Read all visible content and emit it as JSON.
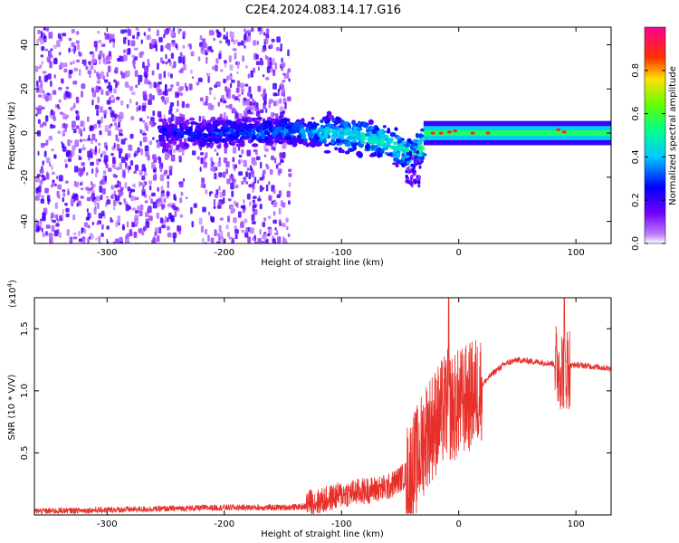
{
  "title": "C2E4.2024.083.14.17.G16",
  "chart_data": [
    {
      "type": "heatmap",
      "xlabel": "Height of straight line (km)",
      "ylabel": "Frequency (Hz)",
      "xlim": [
        -362,
        130
      ],
      "ylim": [
        -50,
        48
      ],
      "xticks": [
        -300,
        -200,
        -100,
        0,
        100
      ],
      "xtick_labels": [
        "-300",
        "-200",
        "-100",
        "0",
        "100"
      ],
      "yticks": [
        -40,
        -20,
        0,
        20,
        40
      ],
      "ytick_labels": [
        "-40",
        "-20",
        "0",
        "20",
        "40"
      ],
      "colorbar": {
        "label": "Normalized spectral amplitude",
        "range": [
          0,
          1
        ],
        "ticks": [
          0.0,
          0.2,
          0.4,
          0.6,
          0.8
        ],
        "tick_labels": [
          "0.0",
          "0.2",
          "0.4",
          "0.6",
          "0.8"
        ],
        "colors": [
          "#ffffff",
          "#7a00ff",
          "#0000ff",
          "#00c8ff",
          "#00ff80",
          "#80ff00",
          "#ffd000",
          "#ff0000",
          "#ff0080"
        ]
      },
      "signal_track": [
        {
          "x": -250,
          "f": 0,
          "amp": 0.25
        },
        {
          "x": -200,
          "f": 0,
          "amp": 0.3
        },
        {
          "x": -150,
          "f": 1,
          "amp": 0.35
        },
        {
          "x": -100,
          "f": 0,
          "amp": 0.45
        },
        {
          "x": -60,
          "f": -4,
          "amp": 0.5
        },
        {
          "x": -40,
          "f": -10,
          "amp": 0.45
        },
        {
          "x": -20,
          "f": 0,
          "amp": 0.7
        },
        {
          "x": 0,
          "f": 0,
          "amp": 0.8
        },
        {
          "x": 50,
          "f": 0,
          "amp": 0.55
        },
        {
          "x": 90,
          "f": 1,
          "amp": 0.7
        },
        {
          "x": 130,
          "f": 0,
          "amp": 0.55
        }
      ],
      "noise_region_xlim": [
        -362,
        -145
      ],
      "grid": false
    },
    {
      "type": "line",
      "xlabel": "Height of straight line (km)",
      "ylabel": "SNR (10 * V/V)",
      "y_multiplier_label": "(x10",
      "y_multiplier_exp": "4",
      "y_multiplier_close": ")",
      "xlim": [
        -362,
        130
      ],
      "ylim": [
        0,
        1.75
      ],
      "xticks": [
        -300,
        -200,
        -100,
        0,
        100
      ],
      "xtick_labels": [
        "-300",
        "-200",
        "-100",
        "0",
        "100"
      ],
      "yticks": [
        0.5,
        1.0,
        1.5
      ],
      "ytick_labels": [
        "0.5",
        "1.0",
        "1.5"
      ],
      "series": [
        {
          "color": "#e8302a",
          "x": [
            -362,
            -300,
            -250,
            -200,
            -150,
            -120,
            -100,
            -80,
            -60,
            -45,
            -35,
            -28,
            -20,
            -15,
            -10,
            -5,
            0,
            10,
            20,
            30,
            40,
            50,
            60,
            70,
            80,
            85,
            90,
            95,
            100,
            110,
            120,
            130
          ],
          "y": [
            0.02,
            0.03,
            0.04,
            0.05,
            0.05,
            0.06,
            0.12,
            0.15,
            0.18,
            0.28,
            0.45,
            0.65,
            0.75,
            0.8,
            0.9,
            0.85,
            0.9,
            0.95,
            1.05,
            1.15,
            1.22,
            1.25,
            1.24,
            1.23,
            1.22,
            1.2,
            1.18,
            1.2,
            1.21,
            1.2,
            1.19,
            1.18
          ]
        }
      ],
      "grid": false
    }
  ]
}
